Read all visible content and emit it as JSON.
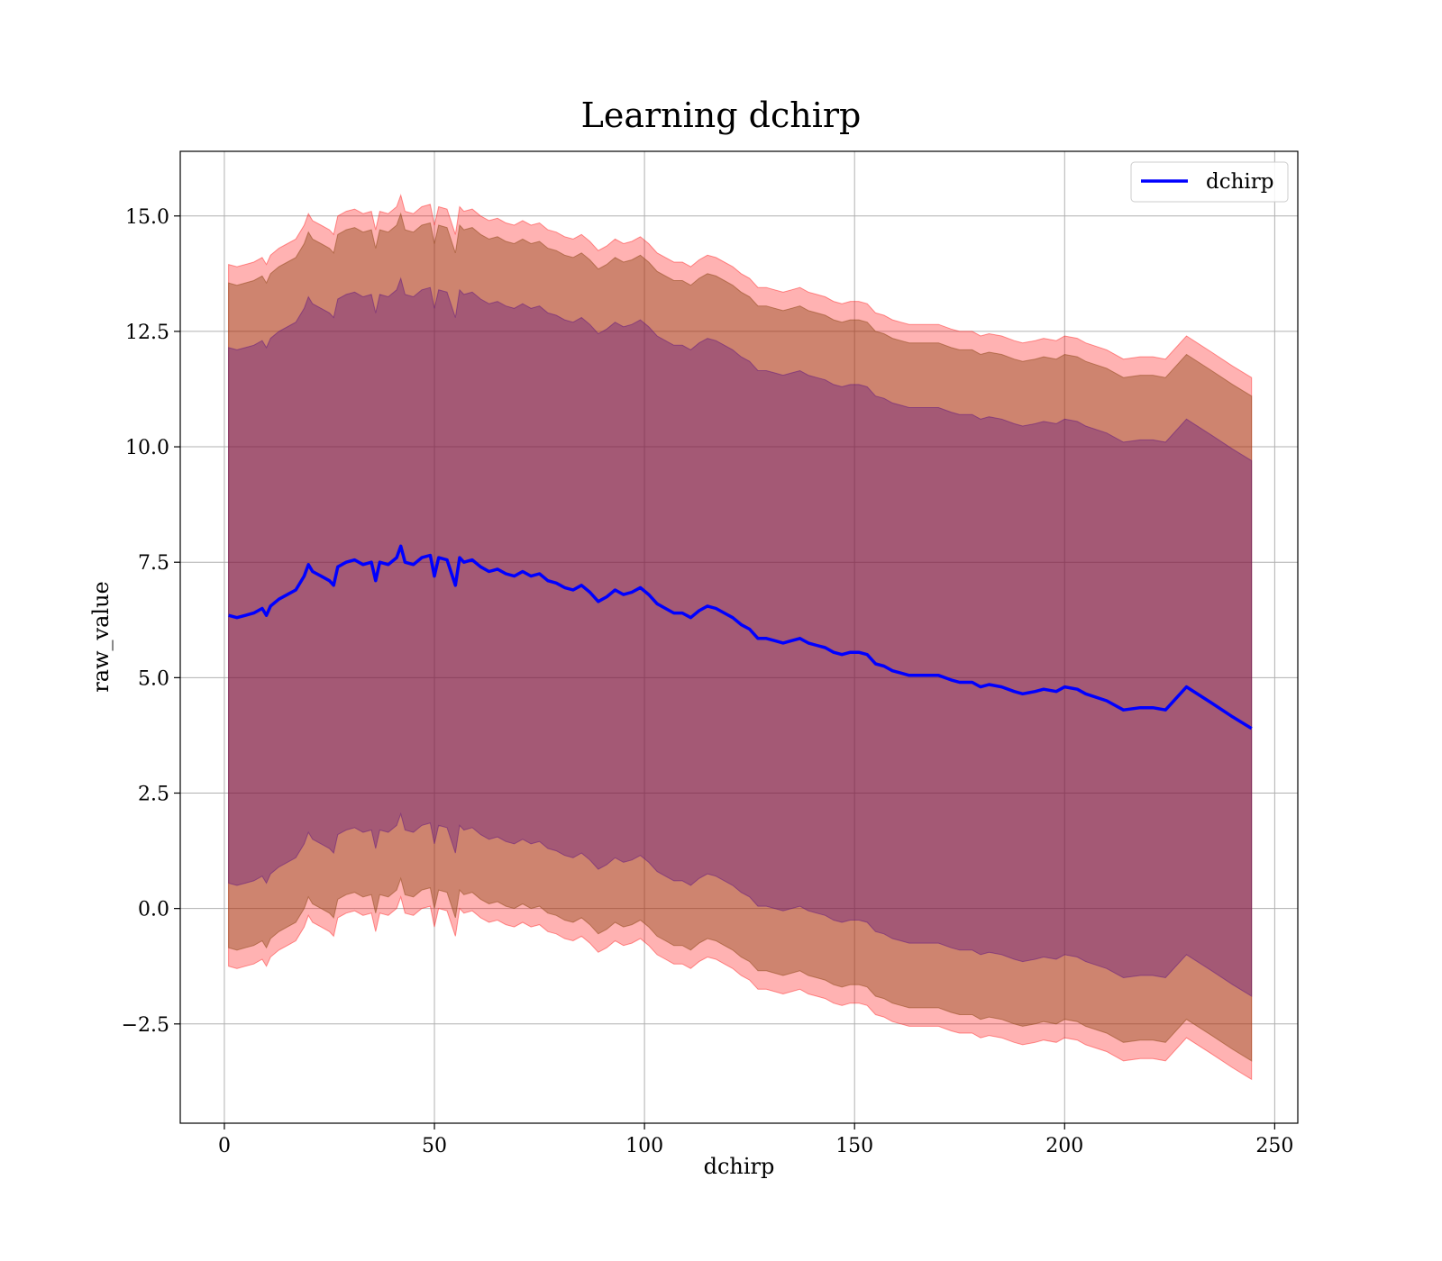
{
  "chart_data": {
    "type": "area",
    "title": "Learning dchirp",
    "xlabel": "dchirp",
    "ylabel": "raw_value",
    "xlim": [
      -10.5,
      255.5
    ],
    "ylim": [
      -4.65,
      16.4
    ],
    "xticks": [
      0,
      50,
      100,
      150,
      200,
      250
    ],
    "xtick_labels": [
      "0",
      "50",
      "100",
      "150",
      "200",
      "250"
    ],
    "yticks": [
      -2.5,
      0.0,
      2.5,
      5.0,
      7.5,
      10.0,
      12.5,
      15.0
    ],
    "ytick_labels": [
      "−2.5",
      "0.0",
      "2.5",
      "5.0",
      "7.5",
      "10.0",
      "12.5",
      "15.0"
    ],
    "grid": true,
    "legend": {
      "position": "top-right",
      "entries": [
        "dchirp"
      ]
    },
    "colors": {
      "line": "#0000ff",
      "band_outer": "#ff0000",
      "band_middle": "#8b4513",
      "band_inner": "#4b0082"
    },
    "band_half_widths": {
      "outer": 7.6,
      "middle": 7.2,
      "inner": 5.8
    },
    "series": [
      {
        "name": "dchirp",
        "x": [
          1,
          3,
          5,
          7,
          9,
          10,
          11,
          13,
          15,
          17,
          19,
          20,
          21,
          23,
          25,
          26,
          27,
          29,
          31,
          33,
          35,
          36,
          37,
          39,
          41,
          42,
          43,
          45,
          47,
          49,
          50,
          51,
          53,
          55,
          56,
          57,
          59,
          61,
          63,
          65,
          67,
          69,
          71,
          73,
          75,
          77,
          79,
          81,
          83,
          85,
          87,
          89,
          91,
          93,
          95,
          97,
          99,
          101,
          103,
          105,
          107,
          109,
          111,
          113,
          115,
          117,
          119,
          121,
          123,
          125,
          127,
          129,
          131,
          133,
          135,
          137,
          139,
          141,
          143,
          145,
          147,
          149,
          151,
          153,
          155,
          157,
          159,
          161,
          163,
          165,
          167,
          170,
          173,
          175,
          178,
          180,
          182,
          185,
          188,
          190,
          193,
          195,
          198,
          200,
          203,
          205,
          210,
          214,
          218,
          221,
          224,
          229,
          235,
          240,
          244.5
        ],
        "values": [
          6.35,
          6.3,
          6.35,
          6.4,
          6.5,
          6.35,
          6.55,
          6.7,
          6.8,
          6.9,
          7.2,
          7.45,
          7.3,
          7.2,
          7.1,
          7.0,
          7.4,
          7.5,
          7.55,
          7.45,
          7.5,
          7.1,
          7.5,
          7.45,
          7.6,
          7.85,
          7.5,
          7.45,
          7.6,
          7.65,
          7.2,
          7.6,
          7.55,
          7.0,
          7.6,
          7.5,
          7.55,
          7.4,
          7.3,
          7.35,
          7.25,
          7.2,
          7.3,
          7.2,
          7.25,
          7.1,
          7.05,
          6.95,
          6.9,
          7.0,
          6.85,
          6.65,
          6.75,
          6.9,
          6.8,
          6.85,
          6.95,
          6.8,
          6.6,
          6.5,
          6.4,
          6.4,
          6.3,
          6.45,
          6.55,
          6.5,
          6.4,
          6.3,
          6.15,
          6.05,
          5.85,
          5.85,
          5.8,
          5.75,
          5.8,
          5.85,
          5.75,
          5.7,
          5.65,
          5.55,
          5.5,
          5.55,
          5.55,
          5.5,
          5.3,
          5.25,
          5.15,
          5.1,
          5.05,
          5.05,
          5.05,
          5.05,
          4.95,
          4.9,
          4.9,
          4.8,
          4.85,
          4.8,
          4.7,
          4.65,
          4.7,
          4.75,
          4.7,
          4.8,
          4.75,
          4.65,
          4.5,
          4.3,
          4.35,
          4.35,
          4.3,
          4.8,
          4.45,
          4.15,
          3.9
        ]
      }
    ]
  }
}
